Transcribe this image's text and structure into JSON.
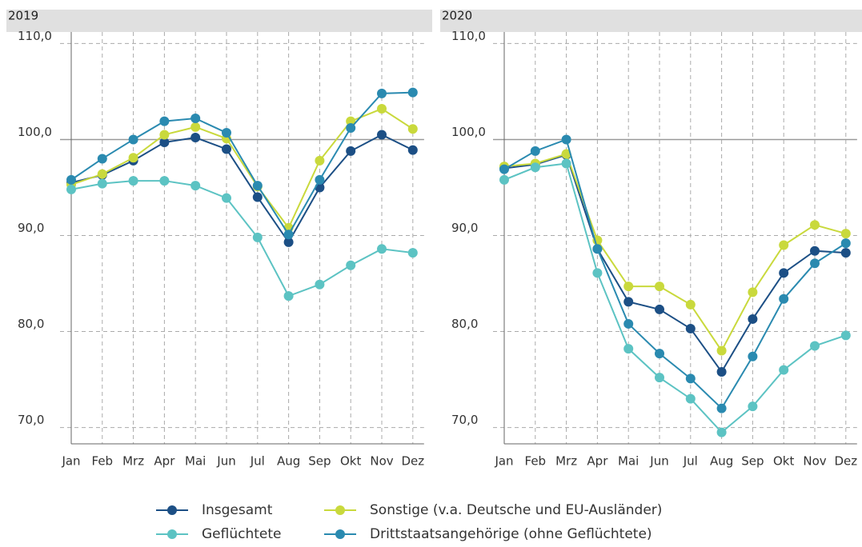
{
  "chart_data": [
    {
      "type": "line",
      "title": "2019",
      "categories": [
        "Jan",
        "Feb",
        "Mrz",
        "Apr",
        "Mai",
        "Jun",
        "Jul",
        "Aug",
        "Sep",
        "Okt",
        "Nov",
        "Dez"
      ],
      "ylim": [
        68.3,
        111.2
      ],
      "yticks": [
        {
          "value": 70,
          "label": "70,0"
        },
        {
          "value": 80,
          "label": "80,0"
        },
        {
          "value": 90,
          "label": "90,0"
        },
        {
          "value": 100,
          "label": "100,0"
        },
        {
          "value": 110,
          "label": "110,0"
        }
      ],
      "grid": true,
      "baseline": 100,
      "series": [
        {
          "name": "Insgesamt",
          "color": "#1c4f85",
          "values": [
            95.5,
            96.3,
            97.8,
            99.7,
            100.2,
            99.0,
            94.0,
            89.3,
            95.0,
            98.8,
            100.5,
            98.9
          ]
        },
        {
          "name": "Sonstige (v.a. Deutsche und EU-Ausländer)",
          "color": "#c9d93c",
          "values": [
            95.3,
            96.4,
            98.1,
            100.5,
            101.3,
            100.1,
            95.1,
            90.8,
            97.8,
            101.9,
            103.2,
            101.1
          ]
        },
        {
          "name": "Geflüchtete",
          "color": "#5cc3c3",
          "values": [
            94.8,
            95.4,
            95.7,
            95.7,
            95.2,
            93.9,
            89.8,
            83.7,
            84.9,
            86.9,
            88.6,
            88.2
          ]
        },
        {
          "name": "Drittstaatsangehörige (ohne Geflüchtete)",
          "color": "#2a8ab0",
          "values": [
            95.8,
            98.0,
            100.0,
            101.9,
            102.2,
            100.7,
            95.2,
            90.1,
            95.8,
            101.2,
            104.8,
            104.9
          ]
        }
      ]
    },
    {
      "type": "line",
      "title": "2020",
      "categories": [
        "Jan",
        "Feb",
        "Mrz",
        "Apr",
        "Mai",
        "Jun",
        "Jul",
        "Aug",
        "Sep",
        "Okt",
        "Nov",
        "Dez"
      ],
      "ylim": [
        68.3,
        111.2
      ],
      "yticks": [
        {
          "value": 70,
          "label": "70,0"
        },
        {
          "value": 80,
          "label": "80,0"
        },
        {
          "value": 90,
          "label": "90,0"
        },
        {
          "value": 100,
          "label": "100,0"
        },
        {
          "value": 110,
          "label": "110,0"
        }
      ],
      "grid": true,
      "baseline": 100,
      "series": [
        {
          "name": "Insgesamt",
          "color": "#1c4f85",
          "values": [
            97.0,
            97.4,
            98.4,
            88.6,
            83.1,
            82.3,
            80.3,
            75.8,
            81.3,
            86.1,
            88.4,
            88.2
          ]
        },
        {
          "name": "Sonstige (v.a. Deutsche und EU-Ausländer)",
          "color": "#c9d93c",
          "values": [
            97.2,
            97.5,
            98.5,
            89.5,
            84.7,
            84.7,
            82.8,
            78.0,
            84.1,
            89.0,
            91.1,
            90.2
          ]
        },
        {
          "name": "Geflüchtete",
          "color": "#5cc3c3",
          "values": [
            95.8,
            97.1,
            97.5,
            86.1,
            78.2,
            75.2,
            73.0,
            69.5,
            72.2,
            76.0,
            78.5,
            79.6
          ]
        },
        {
          "name": "Drittstaatsangehörige (ohne Geflüchtete)",
          "color": "#2a8ab0",
          "values": [
            96.9,
            98.8,
            100.0,
            88.6,
            80.8,
            77.7,
            75.1,
            72.0,
            77.4,
            83.4,
            87.1,
            89.2
          ]
        }
      ]
    }
  ]
}
